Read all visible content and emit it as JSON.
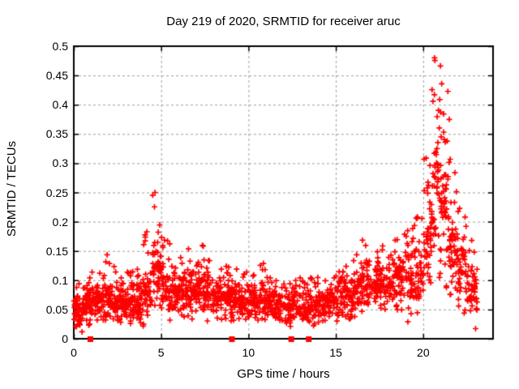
{
  "chart_data": {
    "type": "scatter",
    "title": "Day 219 of 2020, SRMTID for receiver aruc",
    "xlabel": "GPS time / hours",
    "ylabel": "SRMTID / TECUs",
    "xlim": [
      0,
      24
    ],
    "ylim": [
      0,
      0.5
    ],
    "x_ticks": [
      0,
      5,
      10,
      15,
      20
    ],
    "x_tick_labels": [
      "0",
      "5",
      "10",
      "15",
      "20"
    ],
    "y_ticks": [
      0,
      0.05,
      0.1,
      0.15,
      0.2,
      0.25,
      0.3,
      0.35,
      0.4,
      0.45,
      0.5
    ],
    "y_tick_labels": [
      "0",
      "0.05",
      "0.1",
      "0.15",
      "0.2",
      "0.25",
      "0.3",
      "0.35",
      "0.4",
      "0.45",
      "0.5"
    ],
    "grid": {
      "show": true,
      "color": "#9e9e9e",
      "dash": [
        3,
        3
      ]
    },
    "legend": "none",
    "axis_color": "#000000",
    "background": "#ffffff",
    "seed": 42,
    "series": [
      {
        "name": "srmtid",
        "marker": "plus",
        "color": "#ff0000",
        "marker_size": 7,
        "sampling": "binned_envelope",
        "bins_format": [
          "x_start_hr",
          "x_end_hr",
          "count",
          "y_min",
          "y_typical",
          "y_max"
        ],
        "bins": [
          [
            0.0,
            0.5,
            48,
            0.012,
            0.045,
            0.095
          ],
          [
            0.5,
            1.0,
            45,
            0.02,
            0.055,
            0.105
          ],
          [
            1.0,
            1.5,
            45,
            0.025,
            0.06,
            0.115
          ],
          [
            1.5,
            2.0,
            45,
            0.03,
            0.065,
            0.145
          ],
          [
            2.0,
            2.5,
            45,
            0.025,
            0.06,
            0.13
          ],
          [
            2.5,
            3.0,
            45,
            0.02,
            0.055,
            0.105
          ],
          [
            3.0,
            3.5,
            45,
            0.025,
            0.06,
            0.115
          ],
          [
            3.5,
            4.0,
            45,
            0.02,
            0.058,
            0.12
          ],
          [
            4.0,
            4.5,
            45,
            0.035,
            0.075,
            0.185
          ],
          [
            4.5,
            5.0,
            50,
            0.05,
            0.115,
            0.248
          ],
          [
            5.0,
            5.5,
            45,
            0.045,
            0.09,
            0.175
          ],
          [
            5.5,
            6.0,
            42,
            0.03,
            0.07,
            0.125
          ],
          [
            6.0,
            6.5,
            45,
            0.035,
            0.075,
            0.14
          ],
          [
            6.5,
            7.0,
            45,
            0.035,
            0.08,
            0.155
          ],
          [
            7.0,
            7.5,
            45,
            0.03,
            0.08,
            0.16
          ],
          [
            7.5,
            8.0,
            42,
            0.03,
            0.07,
            0.135
          ],
          [
            8.0,
            8.5,
            42,
            0.03,
            0.065,
            0.12
          ],
          [
            8.5,
            9.0,
            42,
            0.035,
            0.07,
            0.125
          ],
          [
            9.0,
            9.5,
            42,
            0.03,
            0.065,
            0.12
          ],
          [
            9.5,
            10.0,
            40,
            0.028,
            0.06,
            0.115
          ],
          [
            10.0,
            10.5,
            40,
            0.03,
            0.06,
            0.11
          ],
          [
            10.5,
            11.0,
            40,
            0.03,
            0.062,
            0.13
          ],
          [
            11.0,
            11.5,
            40,
            0.022,
            0.055,
            0.105
          ],
          [
            11.5,
            12.0,
            40,
            0.025,
            0.055,
            0.1
          ],
          [
            12.0,
            12.5,
            40,
            0.02,
            0.05,
            0.095
          ],
          [
            12.5,
            13.0,
            40,
            0.025,
            0.055,
            0.105
          ],
          [
            13.0,
            13.5,
            40,
            0.02,
            0.05,
            0.1
          ],
          [
            13.5,
            14.0,
            40,
            0.025,
            0.055,
            0.105
          ],
          [
            14.0,
            14.5,
            40,
            0.03,
            0.055,
            0.1
          ],
          [
            14.5,
            15.0,
            40,
            0.03,
            0.06,
            0.105
          ],
          [
            15.0,
            15.5,
            40,
            0.022,
            0.06,
            0.115
          ],
          [
            15.5,
            16.0,
            40,
            0.03,
            0.068,
            0.125
          ],
          [
            16.0,
            16.5,
            40,
            0.04,
            0.078,
            0.145
          ],
          [
            16.5,
            17.0,
            40,
            0.04,
            0.088,
            0.17
          ],
          [
            17.0,
            17.5,
            40,
            0.04,
            0.085,
            0.15
          ],
          [
            17.5,
            18.0,
            40,
            0.045,
            0.09,
            0.16
          ],
          [
            18.0,
            18.5,
            40,
            0.05,
            0.095,
            0.17
          ],
          [
            18.5,
            19.0,
            40,
            0.045,
            0.1,
            0.18
          ],
          [
            19.0,
            19.5,
            40,
            0.03,
            0.1,
            0.19
          ],
          [
            19.5,
            20.0,
            42,
            0.05,
            0.11,
            0.21
          ],
          [
            20.0,
            20.5,
            46,
            0.07,
            0.16,
            0.31
          ],
          [
            20.5,
            21.0,
            52,
            0.1,
            0.26,
            0.48
          ],
          [
            21.0,
            21.5,
            52,
            0.09,
            0.23,
            0.44
          ],
          [
            21.5,
            22.0,
            45,
            0.07,
            0.15,
            0.31
          ],
          [
            22.0,
            22.5,
            42,
            0.05,
            0.11,
            0.225
          ],
          [
            22.5,
            23.0,
            40,
            0.035,
            0.08,
            0.17
          ],
          [
            23.0,
            23.1,
            12,
            0.02,
            0.06,
            0.12
          ]
        ],
        "notable_points": [
          [
            4.65,
            0.25
          ],
          [
            20.65,
            0.48
          ]
        ]
      },
      {
        "name": "flags",
        "marker": "filled-square",
        "color": "#ff0000",
        "marker_size": 7,
        "points": [
          [
            0.95,
            0
          ],
          [
            9.05,
            0
          ],
          [
            12.45,
            0
          ],
          [
            13.45,
            0
          ]
        ]
      }
    ]
  }
}
